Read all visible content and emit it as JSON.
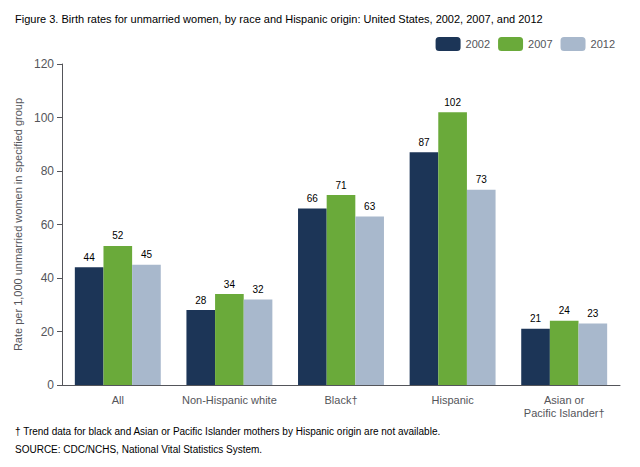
{
  "chart_data": {
    "type": "bar",
    "title": "Figure 3. Birth rates for unmarried women, by race and Hispanic origin: United States, 2002, 2007, and 2012",
    "y_label": "Rate per 1,000 unmarried women in specified group",
    "categories": [
      "All",
      "Non-Hispanic white",
      "Black†",
      "Hispanic",
      "Asian or\nPacific Islander†"
    ],
    "series": [
      {
        "name": "2002",
        "color": "#1c3557",
        "values": [
          44,
          28,
          66,
          87,
          21
        ]
      },
      {
        "name": "2007",
        "color": "#6aaa3a",
        "values": [
          52,
          34,
          71,
          102,
          24
        ]
      },
      {
        "name": "2012",
        "color": "#a8b8cc",
        "values": [
          45,
          32,
          63,
          73,
          23
        ]
      }
    ],
    "ylim": [
      0,
      120
    ],
    "yticks": [
      0,
      20,
      40,
      60,
      80,
      100,
      120
    ],
    "grid": false,
    "legend": "upper right",
    "data_labels": true,
    "annotations": [
      "† Trend data for black and Asian or Pacific Islander mothers by Hispanic origin are not available.",
      "SOURCE: CDC/NCHS, National Vital Statistics System."
    ]
  }
}
